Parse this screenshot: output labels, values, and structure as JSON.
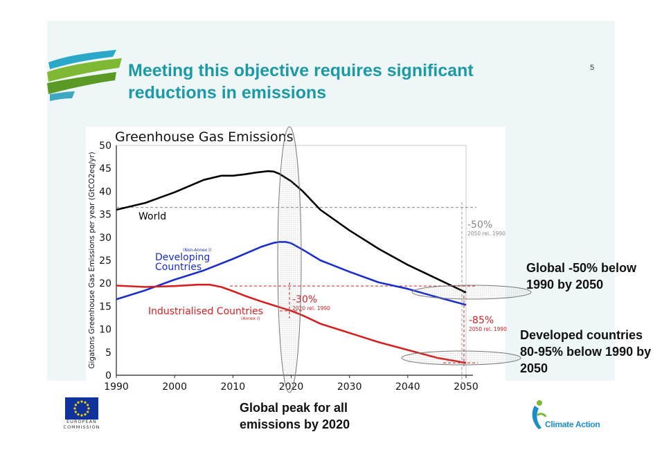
{
  "slide": {
    "title": "Meeting this objective requires significant reductions in emissions",
    "page_number": "5",
    "callouts": {
      "global": "Global -50% below 1990 by 2050",
      "developed": "Developed countries 80-95% below 1990 by 2050",
      "peak": "Global peak for all emissions by 2020"
    },
    "logos": {
      "eu_text": "EUROPEAN COMMISSION",
      "climate_action_text": "Climate Action"
    },
    "colors": {
      "title": "#1b9aa6",
      "world": "#000000",
      "developing": "#1a2ec9",
      "industrialised": "#d42020"
    }
  },
  "chart_data": {
    "type": "line",
    "title": "Greenhouse Gas Emissions",
    "ylabel": "Gigatons Greenhouse Gas Emissions per year (GtCO2eq/yr)",
    "xlabel": "",
    "xlim": [
      1990,
      2050
    ],
    "ylim": [
      0,
      50
    ],
    "x_ticks": [
      "1990",
      "2000",
      "2010",
      "2020",
      "2030",
      "2040",
      "2050"
    ],
    "y_ticks": [
      "0",
      "5",
      "10",
      "15",
      "20",
      "25",
      "30",
      "35",
      "40",
      "45",
      "50"
    ],
    "series": [
      {
        "name": "World",
        "color": "#000000",
        "x": [
          1990,
          1995,
          2000,
          2005,
          2008,
          2010,
          2012,
          2014,
          2016,
          2017,
          2018,
          2020,
          2022,
          2025,
          2030,
          2035,
          2040,
          2045,
          2050
        ],
        "y": [
          36.0,
          37.5,
          39.8,
          42.5,
          43.4,
          43.4,
          43.7,
          44.1,
          44.4,
          44.3,
          43.8,
          42.2,
          40.0,
          36.0,
          31.5,
          27.5,
          24.0,
          21.0,
          18.0
        ]
      },
      {
        "name": "Developing Countries",
        "superscript": "(Non-Annex I)",
        "color": "#1a2ec9",
        "x": [
          1990,
          1995,
          2000,
          2005,
          2010,
          2015,
          2017,
          2018,
          2019,
          2020,
          2022,
          2025,
          2030,
          2035,
          2040,
          2045,
          2050
        ],
        "y": [
          16.5,
          18.5,
          20.8,
          22.8,
          25.3,
          28.0,
          28.8,
          29.0,
          29.0,
          28.7,
          27.3,
          25.0,
          22.5,
          20.2,
          18.8,
          17.0,
          15.3
        ]
      },
      {
        "name": "Industrialised Countries",
        "superscript": "(Annex I)",
        "color": "#d42020",
        "x": [
          1990,
          1995,
          2000,
          2004,
          2006,
          2008,
          2010,
          2012,
          2015,
          2018,
          2020,
          2022,
          2025,
          2030,
          2035,
          2040,
          2045,
          2050
        ],
        "y": [
          19.5,
          19.2,
          19.4,
          19.7,
          19.7,
          19.2,
          18.3,
          17.3,
          16.0,
          14.8,
          14.0,
          13.0,
          11.2,
          9.2,
          7.2,
          5.5,
          3.8,
          2.7
        ]
      }
    ],
    "reference_line": {
      "y": 36.5,
      "style": "dashed",
      "color": "#888888"
    },
    "annotations": [
      {
        "label": "-50%",
        "sub": "2050 rel. 1990",
        "x": 2050,
        "y": 32.5,
        "color": "#888888"
      },
      {
        "label": "-30%",
        "sub": "2020 rel. 1990",
        "x": 2020,
        "y": 16.5,
        "color": "#d42020"
      },
      {
        "label": "-85%",
        "sub": "2050 rel. 1990",
        "x": 2050,
        "y": 11.0,
        "color": "#d42020"
      }
    ]
  }
}
